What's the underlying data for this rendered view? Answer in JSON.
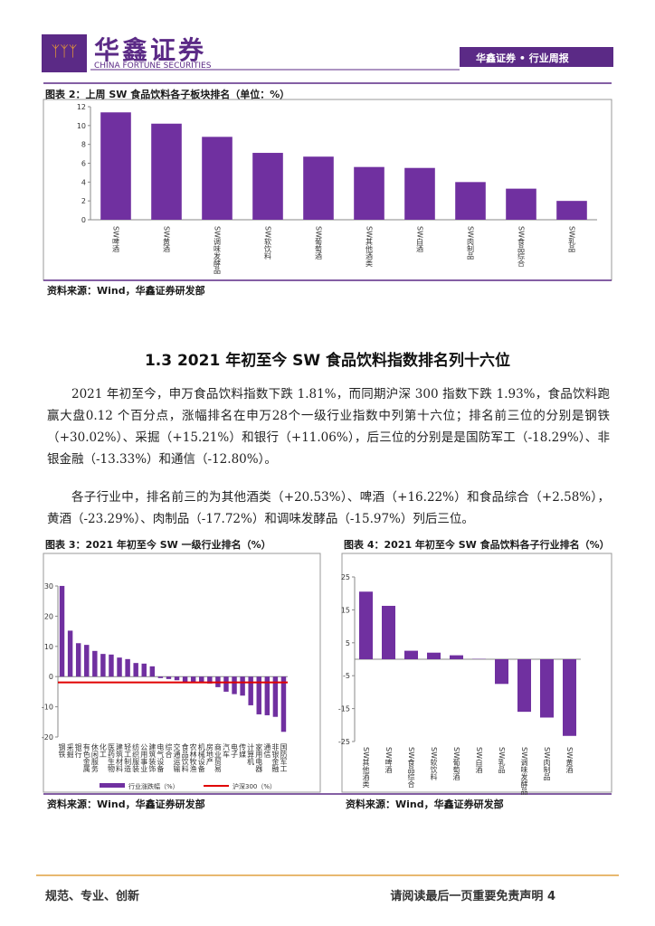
{
  "header": {
    "logo": "华鑫证券",
    "logo_en": "CHINA FORTUNE SECURITIES",
    "right": "华鑫证券 • 行业周报"
  },
  "section": {
    "heading": "1.3 2021 年初至今 SW 食品饮料指数排名列十六位",
    "paragraphs": [
      "2021 年初至今，申万食品饮料指数下跌 1.81%，而同期沪深 300 指数下跌 1.93%，食品饮料跑赢大盘0.12 个百分点，涨幅排名在申万28个一级行业指数中列第十六位；排名前三位的分别是钢铁（+30.02%）、采掘（+15.21%）和银行（+11.06%），后三位的分别是是国防军工（-18.29%）、非银金融（-13.33%）和通信（-12.80%）。",
      "各子行业中，排名前三的为其他酒类（+20.53%）、啤酒（+16.22%）和食品综合（+2.58%），黄酒（-23.29%）、肉制品（-17.72%）和调味发酵品（-15.97%）列后三位。"
    ]
  },
  "figures": [
    {
      "title": "图表 2：上周 SW 食品饮料各子板块排名（单位：%）",
      "source": "资料来源：Wind，华鑫证券研发部",
      "chart": {
        "type": "bar",
        "color": "#7030a0",
        "categories": [
          "SW啤酒",
          "SW黄酒",
          "SW调味发酵品",
          "SW软饮料",
          "SW葡萄酒",
          "SW其他酒类",
          "SW白酒",
          "SW肉制品",
          "SW食品综合",
          "SW乳品"
        ],
        "values": [
          11.4,
          10.2,
          8.8,
          7.1,
          6.7,
          5.6,
          5.5,
          4.0,
          3.3,
          2.0
        ],
        "ylim": [
          0,
          12
        ],
        "yticks": [
          0,
          2,
          4,
          6,
          8,
          10,
          12
        ]
      }
    },
    {
      "title": "图表 3：2021 年初至今 SW 一级行业排名（%）",
      "source": "资料来源：Wind，华鑫证券研发部",
      "chart": {
        "type": "bar",
        "color": "#7030a0",
        "legend": "bottom",
        "series_name": "行业涨跌幅（%）",
        "categories": [
          "钢铁",
          "采掘",
          "银行",
          "有色金属",
          "休闲服务",
          "化工",
          "医药生物",
          "建筑材料",
          "轻工制造",
          "纺织服装",
          "公用事业",
          "建筑装饰",
          "电气设备",
          "综合",
          "交通运输",
          "食品饮料",
          "农林牧渔",
          "机械设备",
          "房地产",
          "商业贸易",
          "汽车",
          "电子",
          "传媒",
          "计算机",
          "家用电器",
          "通信",
          "非银金融",
          "国防军工"
        ],
        "values": [
          30.02,
          15.21,
          11.06,
          10.5,
          8.5,
          7.5,
          7.3,
          6.3,
          5.8,
          4.5,
          4.3,
          3.4,
          -0.5,
          -0.8,
          -1.2,
          -1.81,
          -1.9,
          -2.0,
          -2.3,
          -3.5,
          -5.0,
          -5.8,
          -6.3,
          -9.5,
          -12.5,
          -12.8,
          -13.33,
          -18.29
        ],
        "reference_line": {
          "name": "沪深300（%）",
          "value": -1.93,
          "color": "#e00000"
        },
        "ylim": [
          -20,
          30
        ],
        "yticks": [
          -20,
          -10,
          0,
          10,
          20,
          30
        ]
      }
    },
    {
      "title": "图表 4：2021 年初至今 SW 食品饮料各子行业排名（%）",
      "source": "资料来源：Wind，华鑫证券研发部",
      "chart": {
        "type": "bar",
        "color": "#7030a0",
        "categories": [
          "SW其他酒类",
          "SW啤酒",
          "SW食品综合",
          "SW软饮料",
          "SW葡萄酒",
          "SW白酒",
          "SW乳品",
          "SW调味发酵品",
          "SW肉制品",
          "SW黄酒"
        ],
        "values": [
          20.53,
          16.22,
          2.58,
          2.0,
          1.2,
          0.1,
          -7.5,
          -15.97,
          -17.72,
          -23.29
        ],
        "ylim": [
          -25,
          25
        ],
        "yticks": [
          -25,
          -15,
          -5,
          5,
          15,
          25
        ]
      }
    }
  ],
  "footer": {
    "left": "规范、专业、创新",
    "right": "请阅读最后一页重要免责声明 4"
  }
}
